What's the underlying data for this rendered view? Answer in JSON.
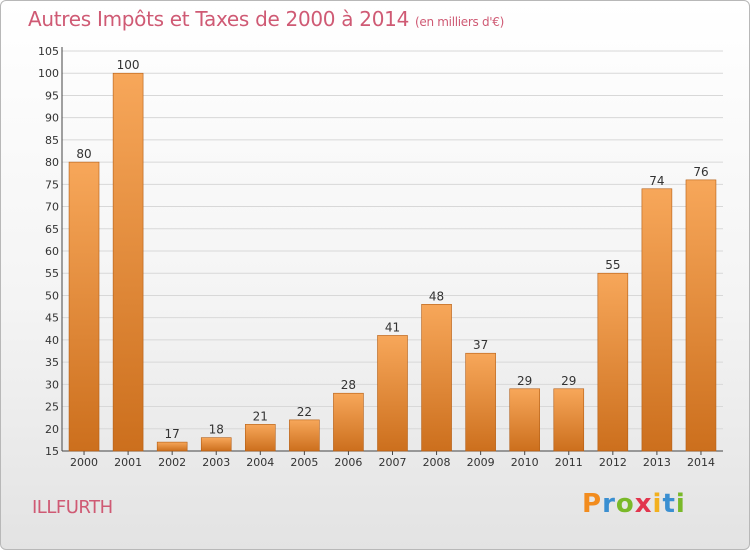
{
  "title": {
    "main": "Autres Impôts et Taxes de 2000 à 2014",
    "unit": "(en milliers d'€)"
  },
  "commune": "ILLFURTH",
  "brand": {
    "letters": [
      {
        "ch": "P",
        "color": "#f28c1e"
      },
      {
        "ch": "r",
        "color": "#3a8fd1"
      },
      {
        "ch": "o",
        "color": "#7ab929"
      },
      {
        "ch": "x",
        "color": "#e2354d"
      },
      {
        "ch": "i",
        "color": "#f2b01e"
      },
      {
        "ch": "t",
        "color": "#3a8fd1"
      },
      {
        "ch": "i",
        "color": "#7ab929"
      }
    ]
  },
  "colors": {
    "bar_light": "#f7a75a",
    "bar_dark": "#cc6f1d",
    "accent": "#cf5a74"
  },
  "chart_data": {
    "type": "bar",
    "categories": [
      "2000",
      "2001",
      "2002",
      "2003",
      "2004",
      "2005",
      "2006",
      "2007",
      "2008",
      "2009",
      "2010",
      "2011",
      "2012",
      "2013",
      "2014"
    ],
    "values": [
      80,
      100,
      17,
      18,
      21,
      22,
      28,
      41,
      48,
      37,
      29,
      29,
      55,
      74,
      76
    ],
    "ylim": [
      15,
      105
    ],
    "yticks": [
      15,
      20,
      25,
      30,
      35,
      40,
      45,
      50,
      55,
      60,
      65,
      70,
      75,
      80,
      85,
      90,
      95,
      100,
      105
    ],
    "grid": true
  }
}
